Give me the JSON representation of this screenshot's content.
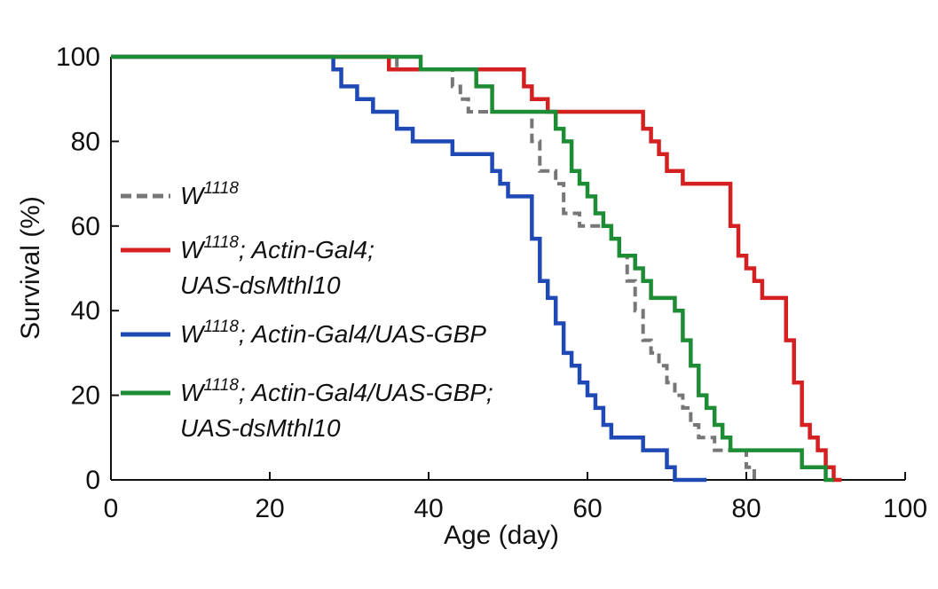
{
  "chart_data": {
    "type": "line",
    "style": "step",
    "xlabel": "Age (day)",
    "ylabel": "Survival (%)",
    "xlim": [
      0,
      100
    ],
    "ylim": [
      0,
      100
    ],
    "xticks": [
      "0",
      "20",
      "40",
      "60",
      "80",
      "100"
    ],
    "yticks": [
      "0",
      "20",
      "40",
      "60",
      "80",
      "100"
    ],
    "grid": false,
    "legend_placement": "left",
    "series": [
      {
        "name": "W1118",
        "legend": {
          "base": "W",
          "sup": "1118",
          "line1_rest": "",
          "line2": ""
        },
        "color": "#777777",
        "dash": "dashed",
        "x": [
          0,
          36,
          43,
          44,
          45,
          47,
          53,
          54,
          56,
          57,
          59,
          63,
          64,
          65,
          66,
          67,
          68,
          69,
          70,
          71,
          72,
          73,
          74,
          76,
          80,
          81
        ],
        "y": [
          100,
          97,
          93,
          90,
          87,
          87,
          80,
          73,
          70,
          63,
          60,
          57,
          53,
          47,
          40,
          33,
          30,
          27,
          23,
          20,
          17,
          13,
          10,
          7,
          3,
          0
        ]
      },
      {
        "name": "W1118; Actin-Gal4; UAS-dsMthl10",
        "legend": {
          "base": "W",
          "sup": "1118",
          "line1_rest": "; Actin-Gal4;",
          "line2": "UAS-dsMthl10"
        },
        "color": "#d42020",
        "dash": "solid",
        "x": [
          0,
          35,
          36,
          43,
          48,
          52,
          53,
          55,
          58,
          60,
          66,
          67,
          68,
          69,
          70,
          72,
          77,
          78,
          79,
          80,
          81,
          82,
          84,
          85,
          86,
          87,
          88,
          89,
          90,
          91,
          92
        ],
        "y": [
          100,
          97,
          97,
          97,
          97,
          93,
          90,
          87,
          87,
          87,
          87,
          83,
          80,
          77,
          73,
          70,
          70,
          60,
          53,
          50,
          47,
          43,
          43,
          33,
          23,
          13,
          10,
          7,
          3,
          0,
          0
        ]
      },
      {
        "name": "W1118; Actin-Gal4/UAS-GBP",
        "legend": {
          "base": "W",
          "sup": "1118",
          "line1_rest": "; Actin-Gal4/UAS-GBP",
          "line2": ""
        },
        "color": "#1f49b4",
        "dash": "solid",
        "x": [
          0,
          28,
          29,
          31,
          33,
          36,
          38,
          40,
          43,
          48,
          49,
          50,
          53,
          54,
          55,
          56,
          57,
          58,
          59,
          60,
          61,
          62,
          63,
          64,
          67,
          69,
          70,
          71,
          72,
          74,
          75
        ],
        "y": [
          100,
          97,
          93,
          90,
          87,
          83,
          80,
          80,
          77,
          73,
          70,
          67,
          57,
          47,
          43,
          37,
          30,
          27,
          23,
          20,
          17,
          13,
          10,
          10,
          7,
          7,
          3,
          0,
          0,
          0,
          0
        ]
      },
      {
        "name": "W1118; Actin-Gal4/UAS-GBP; UAS-dsMthl10",
        "legend": {
          "base": "W",
          "sup": "1118",
          "line1_rest": "; Actin-Gal4/UAS-GBP;",
          "line2": "UAS-dsMthl10"
        },
        "color": "#1e8c34",
        "dash": "solid",
        "x": [
          0,
          39,
          40,
          46,
          48,
          55,
          56,
          57,
          58,
          59,
          60,
          61,
          62,
          63,
          64,
          66,
          67,
          68,
          71,
          72,
          73,
          74,
          75,
          76,
          77,
          78,
          87,
          88,
          90,
          91
        ],
        "y": [
          100,
          97,
          97,
          93,
          87,
          87,
          83,
          80,
          73,
          70,
          67,
          63,
          60,
          57,
          53,
          50,
          47,
          43,
          40,
          33,
          27,
          20,
          17,
          13,
          10,
          7,
          3,
          3,
          0,
          0
        ]
      }
    ]
  }
}
